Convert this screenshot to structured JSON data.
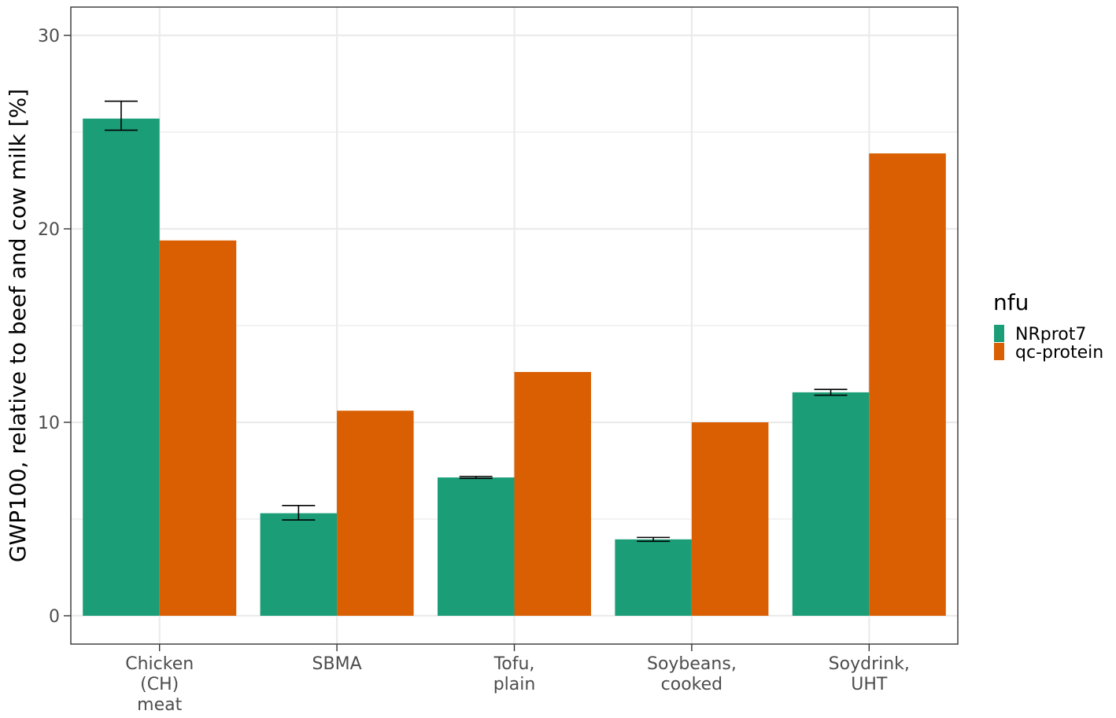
{
  "chart_data": {
    "type": "bar",
    "title": "",
    "xlabel": "",
    "ylabel": "GWP100, relative to beef and cow milk [%]",
    "ylim": [
      -1.5,
      31.5
    ],
    "yticks": [
      0,
      10,
      20,
      30
    ],
    "grid": true,
    "legend_position": "right",
    "legend_title": "nfu",
    "categories": [
      [
        "Chicken",
        "(CH)",
        "meat"
      ],
      [
        "SBMA"
      ],
      [
        "Tofu,",
        "plain"
      ],
      [
        "Soybeans,",
        "cooked"
      ],
      [
        "Soydrink,",
        "UHT"
      ]
    ],
    "series": [
      {
        "name": "NRprot7",
        "color": "#1b9e77",
        "values": [
          25.7,
          5.3,
          7.15,
          3.95,
          11.55
        ],
        "error_low": [
          25.1,
          4.95,
          7.1,
          3.85,
          11.4
        ],
        "error_high": [
          26.6,
          5.7,
          7.2,
          4.05,
          11.7
        ]
      },
      {
        "name": "qc-protein",
        "color": "#d95f02",
        "values": [
          19.4,
          10.6,
          12.6,
          10.0,
          23.9
        ]
      }
    ]
  }
}
